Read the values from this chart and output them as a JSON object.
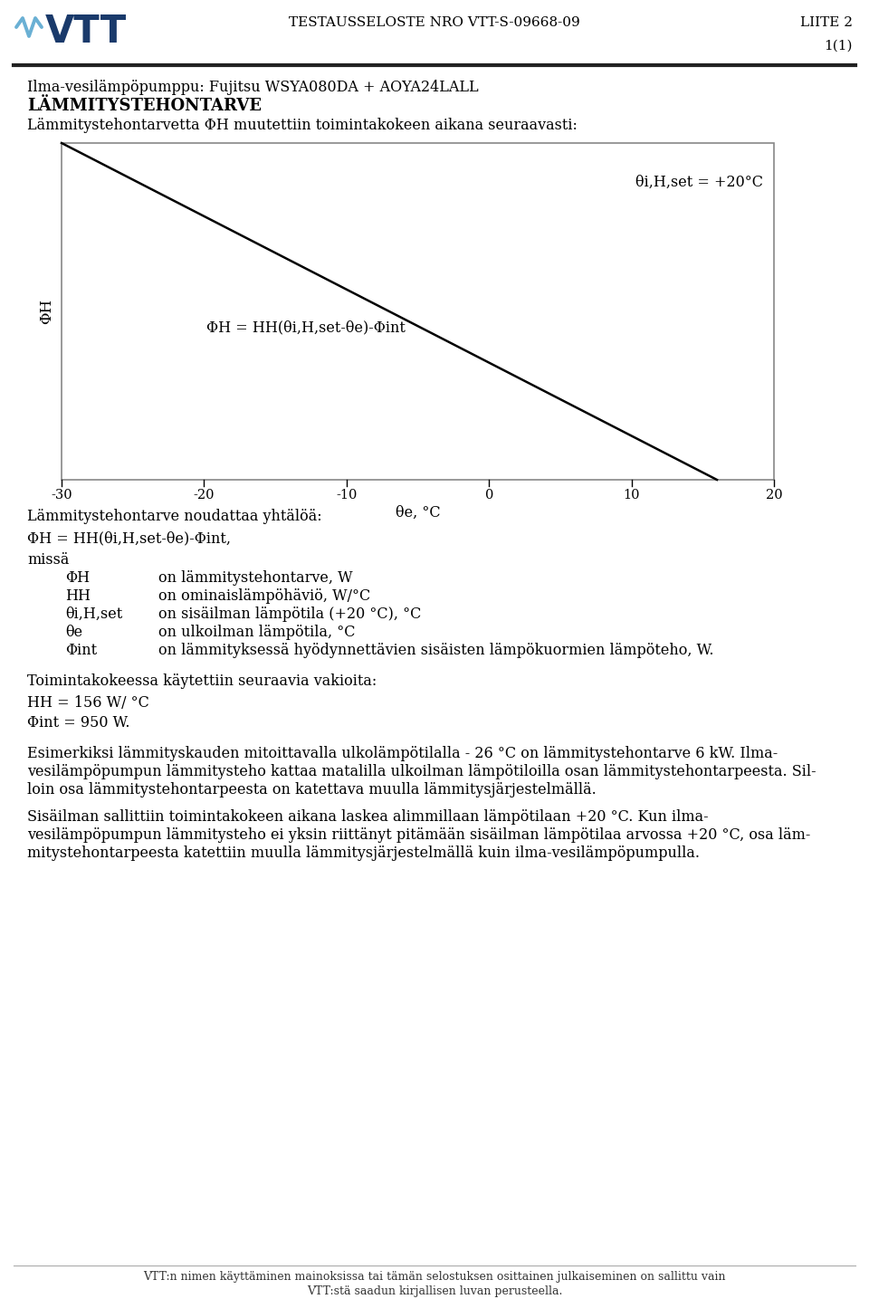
{
  "page_title_center": "TESTAUSSELOSTE NRO VTT-S-09668-09",
  "page_title_right": "LIITE 2",
  "page_number": "1(1)",
  "doc_title_line1": "Ilma-vesilämpöpumppu: Fujitsu WSYA080DA + AOYA24LALL",
  "doc_title_line2": "LÄMMITYSTEHONTARVE",
  "doc_subtitle": "Lämmitystehontarvetta ΦH muutettiin toimintakokeen aikana seuraavasti:",
  "graph_annot_top": "θi,H,set = +20°C",
  "graph_annot_line": "ΦH = HH(θi,H,set-θe)-Φint",
  "graph_ylabel": "ΦH",
  "graph_xlabel": "θe, °C",
  "x_ticks": [
    -30,
    -20,
    -10,
    0,
    10,
    20
  ],
  "line_x": [
    -30,
    16
  ],
  "formula_header": "Lämmitystehontarve noudattaa yhtälöä:",
  "formula_line": "ΦH = HH(θi,H,set-θe)-Φint,",
  "where_label": "missä",
  "table_col1": [
    "ΦH",
    "HH",
    "θi,H,set",
    "θe",
    "Φint"
  ],
  "table_col2": [
    "on lämmitystehontarve, W",
    "on ominaislämpöhäviö, W/°C",
    "on sisäilman lämpötila (+20 °C), °C",
    "on ulkoilman lämpötila, °C",
    "on lämmityksessä hyödynnettävien sisäisten lämpökuormien lämpöteho, W."
  ],
  "constants_header": "Toimintakokeessa käytettiin seuraavia vakioita:",
  "constant1": "HH = 156 W/ °C",
  "constant2": "Φint = 950 W.",
  "para1_line1": "Esimerkiksi lämmityskauden mitoittavalla ulkolämpötilalla - 26 °C on lämmitystehontarve 6 kW. Ilma-",
  "para1_line2": "vesilämpöpumpun lämmitysteho kattaa matalilla ulkoilman lämpötiloilla osan lämmitystehontarpeesta. Sil-",
  "para1_line3": "loin osa lämmitystehontarpeesta on katettava muulla lämmitysjärjestelmällä.",
  "para2_line1": "Sisäilman sallittiin toimintakokeen aikana laskea alimmillaan lämpötilaan +20 °C. Kun ilma-",
  "para2_line2": "vesilämpöpumpun lämmitysteho ei yksin riittänyt pitämään sisäilman lämpötilaa arvossa +20 °C, osa läm-",
  "para2_line3": "mitystehontarpeesta katettiin muulla lämmitysjärjestelmällä kuin ilma-vesilämpöpumpulla.",
  "footer1": "VTT:n nimen käyttäminen mainoksissa tai tämän selostuksen osittainen julkaiseminen on sallittu vain",
  "footer2": "VTT:stä saadun kirjallisen luvan perusteella.",
  "bg": "#ffffff",
  "fg": "#000000",
  "border": "#888888",
  "header_line_color": "#222222",
  "graph_line_color": "#000000"
}
